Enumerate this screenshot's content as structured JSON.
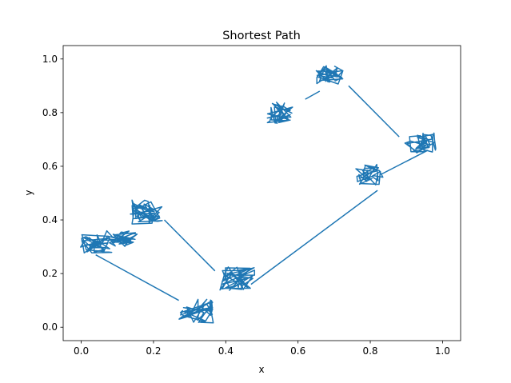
{
  "chart_data": {
    "type": "line",
    "title": "Shortest Path",
    "xlabel": "x",
    "ylabel": "y",
    "xlim": [
      -0.05,
      1.05
    ],
    "ylim": [
      -0.05,
      1.05
    ],
    "xticks": [
      0.0,
      0.2,
      0.4,
      0.6,
      0.8,
      1.0
    ],
    "yticks": [
      0.0,
      0.2,
      0.4,
      0.6,
      0.8,
      1.0
    ],
    "xtick_labels": [
      "0.0",
      "0.2",
      "0.4",
      "0.6",
      "0.8",
      "1.0"
    ],
    "ytick_labels": [
      "0.0",
      "0.2",
      "0.4",
      "0.6",
      "0.8",
      "1.0"
    ],
    "grid": false,
    "series_color": "#1f77b4",
    "clusters": [
      {
        "center": [
          0.04,
          0.31
        ],
        "spread": [
          0.045,
          0.035
        ],
        "count": 40
      },
      {
        "center": [
          0.11,
          0.33
        ],
        "spread": [
          0.05,
          0.03
        ],
        "count": 30
      },
      {
        "center": [
          0.18,
          0.43
        ],
        "spread": [
          0.045,
          0.045
        ],
        "count": 45
      },
      {
        "center": [
          0.32,
          0.06
        ],
        "spread": [
          0.05,
          0.045
        ],
        "count": 45
      },
      {
        "center": [
          0.43,
          0.18
        ],
        "spread": [
          0.05,
          0.045
        ],
        "count": 45
      },
      {
        "center": [
          0.55,
          0.8
        ],
        "spread": [
          0.035,
          0.04
        ],
        "count": 40
      },
      {
        "center": [
          0.69,
          0.94
        ],
        "spread": [
          0.04,
          0.035
        ],
        "count": 40
      },
      {
        "center": [
          0.8,
          0.57
        ],
        "spread": [
          0.04,
          0.04
        ],
        "count": 35
      },
      {
        "center": [
          0.94,
          0.69
        ],
        "spread": [
          0.045,
          0.04
        ],
        "count": 40
      }
    ],
    "connectors": [
      [
        [
          0.04,
          0.27
        ],
        [
          0.27,
          0.1
        ]
      ],
      [
        [
          0.23,
          0.4
        ],
        [
          0.37,
          0.21
        ]
      ],
      [
        [
          0.47,
          0.16
        ],
        [
          0.82,
          0.51
        ]
      ],
      [
        [
          0.74,
          0.9
        ],
        [
          0.88,
          0.71
        ]
      ],
      [
        [
          0.96,
          0.66
        ],
        [
          0.83,
          0.57
        ]
      ],
      [
        [
          0.62,
          0.85
        ],
        [
          0.66,
          0.88
        ]
      ]
    ]
  }
}
